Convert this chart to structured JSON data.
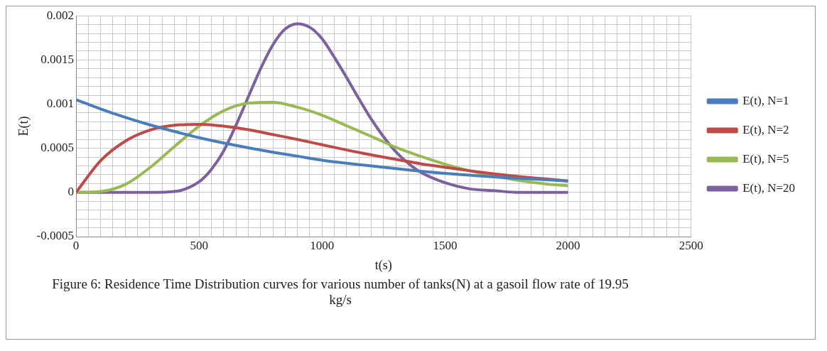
{
  "chart_data": {
    "type": "line",
    "xlabel": "t(s)",
    "ylabel": "E(t)",
    "annotations": [
      "Figure 6: Residence Time Distribution curves for various number of tanks(N) at a gasoil flow rate of 19.95 kg/s"
    ],
    "xlim": [
      0,
      2500
    ],
    "ylim": [
      -0.0005,
      0.002
    ],
    "xticks": [
      0,
      {
        "value": 50,
        "label": null
      },
      {
        "value": 100,
        "label": null
      },
      {
        "value": 150,
        "label": null
      },
      {
        "value": 200,
        "label": null
      },
      {
        "value": 250,
        "label": null
      },
      {
        "value": 300,
        "label": null
      },
      {
        "value": 350,
        "label": null
      },
      {
        "value": 400,
        "label": null
      },
      {
        "value": 450,
        "label": null
      },
      500,
      {
        "value": 550,
        "label": null
      },
      {
        "value": 600,
        "label": null
      },
      {
        "value": 650,
        "label": null
      },
      {
        "value": 700,
        "label": null
      },
      {
        "value": 750,
        "label": null
      },
      {
        "value": 800,
        "label": null
      },
      {
        "value": 850,
        "label": null
      },
      {
        "value": 900,
        "label": null
      },
      {
        "value": 950,
        "label": null
      },
      1000,
      {
        "value": 1050,
        "label": null
      },
      {
        "value": 1100,
        "label": null
      },
      {
        "value": 1150,
        "label": null
      },
      {
        "value": 1200,
        "label": null
      },
      {
        "value": 1250,
        "label": null
      },
      {
        "value": 1300,
        "label": null
      },
      {
        "value": 1350,
        "label": null
      },
      {
        "value": 1400,
        "label": null
      },
      {
        "value": 1450,
        "label": null
      },
      1500,
      {
        "value": 1550,
        "label": null
      },
      {
        "value": 1600,
        "label": null
      },
      {
        "value": 1650,
        "label": null
      },
      {
        "value": 1700,
        "label": null
      },
      {
        "value": 1750,
        "label": null
      },
      {
        "value": 1800,
        "label": null
      },
      {
        "value": 1850,
        "label": null
      },
      {
        "value": 1900,
        "label": null
      },
      {
        "value": 1950,
        "label": null
      },
      2000,
      {
        "value": 2050,
        "label": null
      },
      {
        "value": 2100,
        "label": null
      },
      {
        "value": 2150,
        "label": null
      },
      {
        "value": 2200,
        "label": null
      },
      {
        "value": 2250,
        "label": null
      },
      {
        "value": 2300,
        "label": null
      },
      {
        "value": 2350,
        "label": null
      },
      {
        "value": 2400,
        "label": null
      },
      {
        "value": 2450,
        "label": null
      },
      2500
    ],
    "yticks": [
      -0.0005,
      {
        "value": -0.0004,
        "label": null
      },
      {
        "value": -0.0003,
        "label": null
      },
      {
        "value": -0.0002,
        "label": null
      },
      {
        "value": -0.0001,
        "label": null
      },
      0,
      {
        "value": 0.0001,
        "label": null
      },
      {
        "value": 0.0002,
        "label": null
      },
      {
        "value": 0.0003,
        "label": null
      },
      {
        "value": 0.0004,
        "label": null
      },
      0.0005,
      {
        "value": 0.0006,
        "label": null
      },
      {
        "value": 0.0007,
        "label": null
      },
      {
        "value": 0.0008,
        "label": null
      },
      {
        "value": 0.0009,
        "label": null
      },
      0.001,
      {
        "value": 0.0011,
        "label": null
      },
      {
        "value": 0.0012,
        "label": null
      },
      {
        "value": 0.0013,
        "label": null
      },
      {
        "value": 0.0014,
        "label": null
      },
      0.0015,
      {
        "value": 0.0016,
        "label": null
      },
      {
        "value": 0.0017,
        "label": null
      },
      {
        "value": 0.0018,
        "label": null
      },
      {
        "value": 0.0019,
        "label": null
      },
      0.002
    ],
    "grid": true,
    "legend": "right",
    "marker": "none",
    "line_style": "solid",
    "x": [
      0,
      100,
      200,
      300,
      400,
      500,
      600,
      700,
      800,
      900,
      1000,
      1100,
      1200,
      1300,
      1400,
      1500,
      1600,
      1700,
      1800,
      1900,
      2000
    ],
    "series": [
      {
        "name": "E(t), N=1",
        "color": "#4a7ebb",
        "values": [
          0.00105,
          0.000945,
          0.00085,
          0.000765,
          0.00069,
          0.00062,
          0.00056,
          0.000505,
          0.000455,
          0.00041,
          0.000365,
          0.00033,
          0.0003,
          0.00027,
          0.00024,
          0.000215,
          0.000195,
          0.000175,
          0.00016,
          0.000145,
          0.00013
        ]
      },
      {
        "name": "E(t), N=2",
        "color": "#be4b48",
        "values": [
          0,
          0.00036,
          0.00058,
          0.000705,
          0.00076,
          0.00077,
          0.00075,
          0.00071,
          0.000655,
          0.0006,
          0.00054,
          0.00048,
          0.000425,
          0.000375,
          0.000325,
          0.000285,
          0.000245,
          0.00021,
          0.00018,
          0.000155,
          0.00013
        ]
      },
      {
        "name": "E(t), N=5",
        "color": "#98b954",
        "values": [
          0,
          1e-05,
          9e-05,
          0.00028,
          0.00052,
          0.00075,
          0.000925,
          0.00101,
          0.00102,
          0.000965,
          0.000875,
          0.000755,
          0.000635,
          0.00051,
          0.00041,
          0.00032,
          0.000245,
          0.000185,
          0.000135,
          0.0001,
          7.5e-05
        ]
      },
      {
        "name": "E(t), N=20",
        "color": "#7d60a0",
        "x": [
          0,
          100,
          200,
          300,
          400,
          500,
          550,
          600,
          650,
          700,
          750,
          800,
          850,
          900,
          950,
          1000,
          1050,
          1100,
          1150,
          1200,
          1250,
          1300,
          1350,
          1400,
          1500,
          1600,
          1700,
          1800,
          1900,
          2000
        ],
        "values": [
          0,
          0,
          0,
          0,
          1e-05,
          0.00012,
          0.00026,
          0.00047,
          0.00076,
          0.00108,
          0.0014,
          0.00167,
          0.00185,
          0.00191,
          0.00187,
          0.00174,
          0.00153,
          0.0013,
          0.00106,
          0.00083,
          0.00063,
          0.00046,
          0.00033,
          0.00023,
          0.00011,
          4e-05,
          2e-05,
          0,
          0,
          0
        ]
      }
    ]
  }
}
